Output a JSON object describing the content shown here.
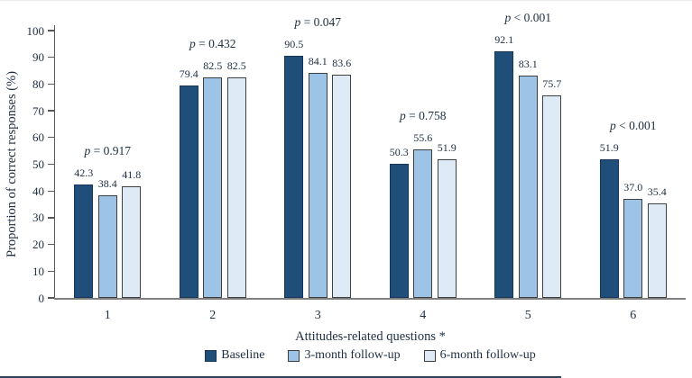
{
  "chart_data": {
    "type": "bar",
    "title": "",
    "categories": [
      "1",
      "2",
      "3",
      "4",
      "5",
      "6"
    ],
    "series": [
      {
        "name": "Baseline",
        "color": "#1F4E79",
        "border_color": "#16365C",
        "values": [
          42.3,
          79.4,
          90.5,
          50.3,
          92.1,
          51.9
        ],
        "value_labels": [
          "42.3",
          "79.4",
          "90.5",
          "50.3",
          "92.1",
          "51.9"
        ]
      },
      {
        "name": "3-month follow-up",
        "color": "#9DC3E6",
        "border_color": "#3F3F3F",
        "values": [
          38.4,
          82.5,
          84.1,
          55.6,
          83.1,
          37.0
        ],
        "value_labels": [
          "38.4",
          "82.5",
          "84.1",
          "55.6",
          "83.1",
          "37.0"
        ]
      },
      {
        "name": "6-month follow-up",
        "color": "#DEEAF6",
        "border_color": "#3F3F3F",
        "values": [
          41.8,
          82.5,
          83.6,
          51.9,
          75.7,
          35.4
        ],
        "value_labels": [
          "41.8",
          "82.5",
          "83.6",
          "51.9",
          "75.7",
          "35.4"
        ]
      }
    ],
    "p_labels": [
      "p = 0.917",
      "p = 0.432",
      "p = 0.047",
      "p = 0.758",
      "p < 0.001",
      "p < 0.001"
    ],
    "xlabel": "Attitudes-related questions *",
    "ylabel": "Proportion of correct responses (%)",
    "ylim": [
      0,
      100
    ],
    "ytick_step": 10,
    "ytick_labels": [
      "0",
      "10",
      "20",
      "30",
      "40",
      "50",
      "60",
      "70",
      "80",
      "90",
      "100"
    ],
    "grid": false,
    "legend_position": "bottom"
  }
}
